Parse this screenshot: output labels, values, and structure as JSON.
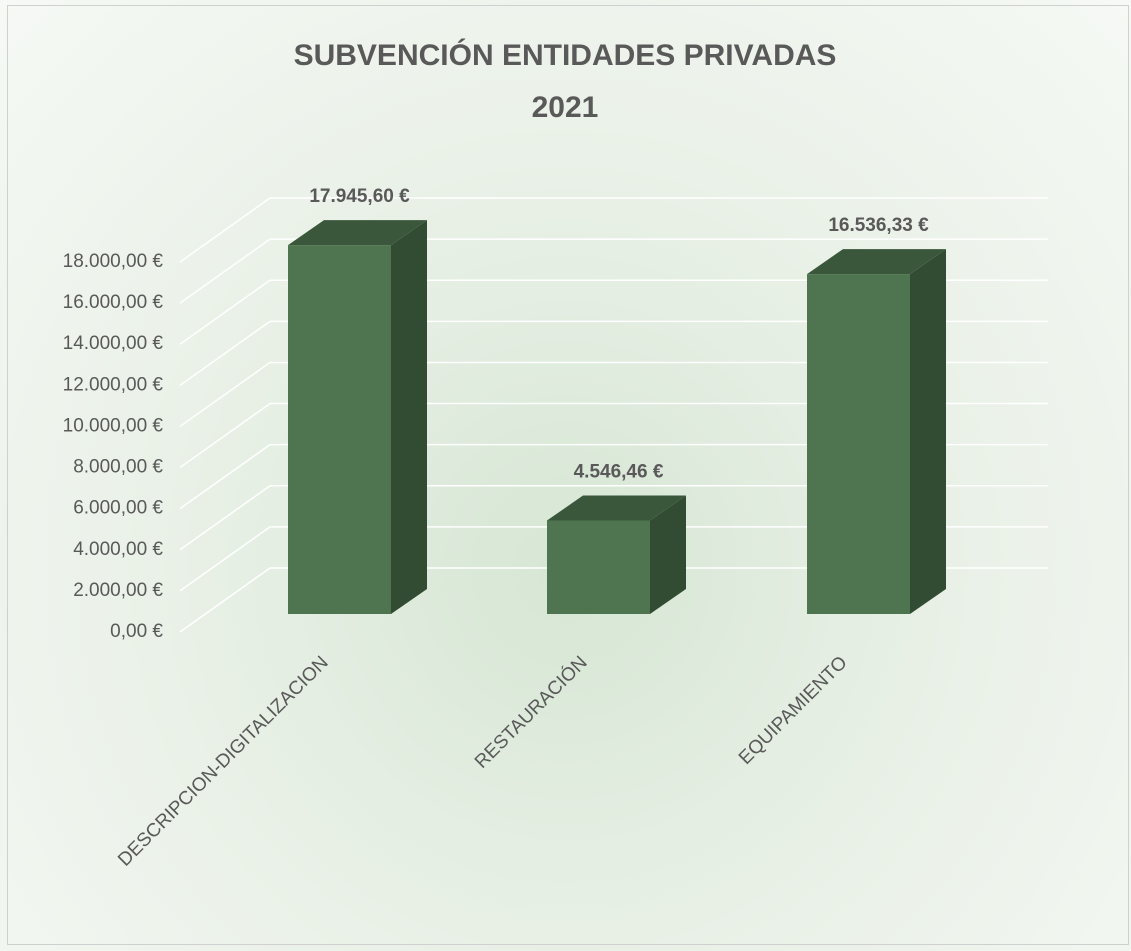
{
  "chart_data": {
    "type": "bar3d",
    "title": "SUBVENCIÓN ENTIDADES PRIVADAS 2021",
    "categories": [
      "DESCRIPCION-DIGITALIZACION",
      "RESTAURACIÓN",
      "EQUIPAMIENTO"
    ],
    "values": [
      17945.6,
      4546.46,
      16536.33
    ],
    "value_labels": [
      "17.945,60 €",
      "4.546,46 €",
      "16.536,33 €"
    ],
    "color": "#4e7550",
    "ylim": [
      0,
      18000
    ],
    "yticks": [
      {
        "value": 0,
        "label": "0,00 €"
      },
      {
        "value": 2000,
        "label": "2.000,00 €"
      },
      {
        "value": 4000,
        "label": "4.000,00 €"
      },
      {
        "value": 6000,
        "label": "6.000,00 €"
      },
      {
        "value": 8000,
        "label": "8.000,00 €"
      },
      {
        "value": 10000,
        "label": "10.000,00 €"
      },
      {
        "value": 12000,
        "label": "12.000,00 €"
      },
      {
        "value": 14000,
        "label": "14.000,00 €"
      },
      {
        "value": 16000,
        "label": "16.000,00 €"
      },
      {
        "value": 18000,
        "label": "18.000,00 €"
      }
    ],
    "grid": true
  }
}
